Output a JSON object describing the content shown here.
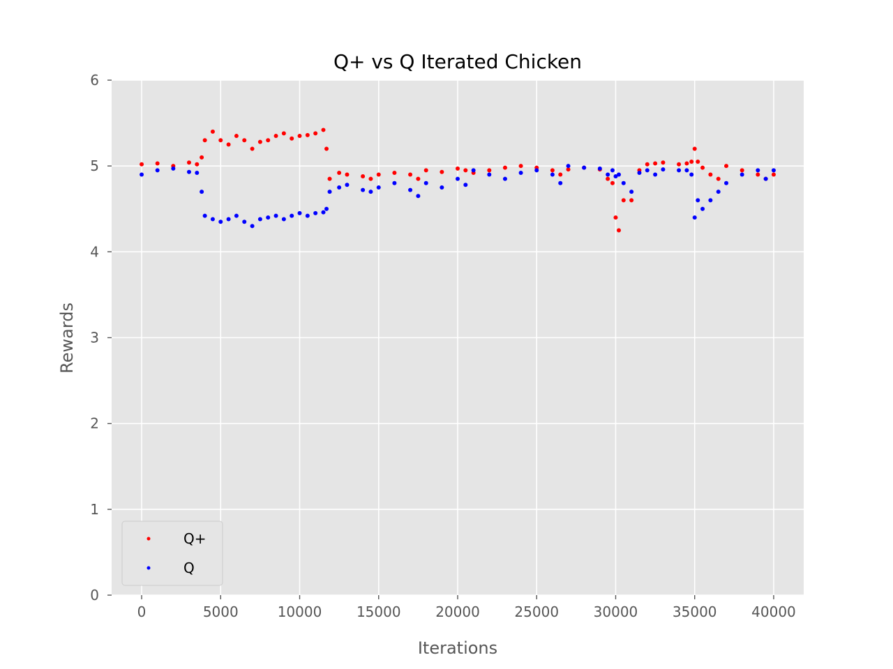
{
  "chart_data": {
    "type": "scatter",
    "title": "Q+ vs Q Iterated Chicken",
    "xlabel": "Iterations",
    "ylabel": "Rewards",
    "xlim": [
      -1900,
      41900
    ],
    "ylim": [
      0,
      6
    ],
    "xticks": [
      0,
      5000,
      10000,
      15000,
      20000,
      25000,
      30000,
      35000,
      40000
    ],
    "yticks": [
      0,
      1,
      2,
      3,
      4,
      5,
      6
    ],
    "grid": true,
    "legend_position": "lower-left",
    "colors": {
      "background": "#e5e5e5",
      "grid": "#ffffff"
    },
    "series": [
      {
        "name": "Q+",
        "color": "#ff0000",
        "x": [
          0,
          1000,
          2000,
          3000,
          3500,
          3800,
          4000,
          4500,
          5000,
          5500,
          6000,
          6500,
          7000,
          7500,
          8000,
          8500,
          9000,
          9500,
          10000,
          10500,
          11000,
          11500,
          11700,
          11900,
          12500,
          13000,
          14000,
          14500,
          15000,
          16000,
          17000,
          17500,
          18000,
          19000,
          20000,
          20500,
          21000,
          22000,
          23000,
          24000,
          25000,
          26000,
          26500,
          27000,
          28000,
          29000,
          29500,
          29800,
          30000,
          30200,
          30500,
          31000,
          31500,
          32000,
          32500,
          33000,
          34000,
          34500,
          34800,
          35000,
          35200,
          35500,
          36000,
          36500,
          37000,
          38000,
          39000,
          39500,
          40000
        ],
        "y": [
          5.02,
          5.03,
          5.0,
          5.04,
          5.02,
          5.1,
          5.3,
          5.4,
          5.3,
          5.25,
          5.35,
          5.3,
          5.2,
          5.28,
          5.3,
          5.35,
          5.38,
          5.32,
          5.35,
          5.36,
          5.38,
          5.42,
          5.2,
          4.85,
          4.92,
          4.9,
          4.88,
          4.85,
          4.9,
          4.92,
          4.9,
          4.85,
          4.95,
          4.93,
          4.97,
          4.95,
          4.92,
          4.95,
          4.98,
          5.0,
          4.98,
          4.95,
          4.9,
          4.96,
          4.98,
          4.96,
          4.85,
          4.8,
          4.4,
          4.25,
          4.6,
          4.6,
          4.95,
          5.02,
          5.03,
          5.04,
          5.02,
          5.03,
          5.05,
          5.2,
          5.05,
          4.98,
          4.9,
          4.85,
          5.0,
          4.95,
          4.9,
          4.85,
          4.9
        ]
      },
      {
        "name": "Q",
        "color": "#0000ff",
        "x": [
          0,
          1000,
          2000,
          3000,
          3500,
          3800,
          4000,
          4500,
          5000,
          5500,
          6000,
          6500,
          7000,
          7500,
          8000,
          8500,
          9000,
          9500,
          10000,
          10500,
          11000,
          11500,
          11700,
          11900,
          12500,
          13000,
          14000,
          14500,
          15000,
          16000,
          17000,
          17500,
          18000,
          19000,
          20000,
          20500,
          21000,
          22000,
          23000,
          24000,
          25000,
          26000,
          26500,
          27000,
          28000,
          29000,
          29500,
          29800,
          30000,
          30200,
          30500,
          31000,
          31500,
          32000,
          32500,
          33000,
          34000,
          34500,
          34800,
          35000,
          35200,
          35500,
          36000,
          36500,
          37000,
          38000,
          39000,
          39500,
          40000
        ],
        "y": [
          4.9,
          4.95,
          4.97,
          4.93,
          4.92,
          4.7,
          4.42,
          4.38,
          4.35,
          4.38,
          4.42,
          4.35,
          4.3,
          4.38,
          4.4,
          4.42,
          4.38,
          4.42,
          4.45,
          4.42,
          4.45,
          4.46,
          4.5,
          4.7,
          4.75,
          4.78,
          4.72,
          4.7,
          4.75,
          4.8,
          4.72,
          4.65,
          4.8,
          4.75,
          4.85,
          4.78,
          4.95,
          4.9,
          4.85,
          4.92,
          4.95,
          4.9,
          4.8,
          5.0,
          4.98,
          4.97,
          4.9,
          4.95,
          4.88,
          4.9,
          4.8,
          4.7,
          4.92,
          4.95,
          4.9,
          4.96,
          4.95,
          4.95,
          4.9,
          4.4,
          4.6,
          4.5,
          4.6,
          4.7,
          4.8,
          4.9,
          4.95,
          4.85,
          4.95
        ]
      }
    ]
  }
}
